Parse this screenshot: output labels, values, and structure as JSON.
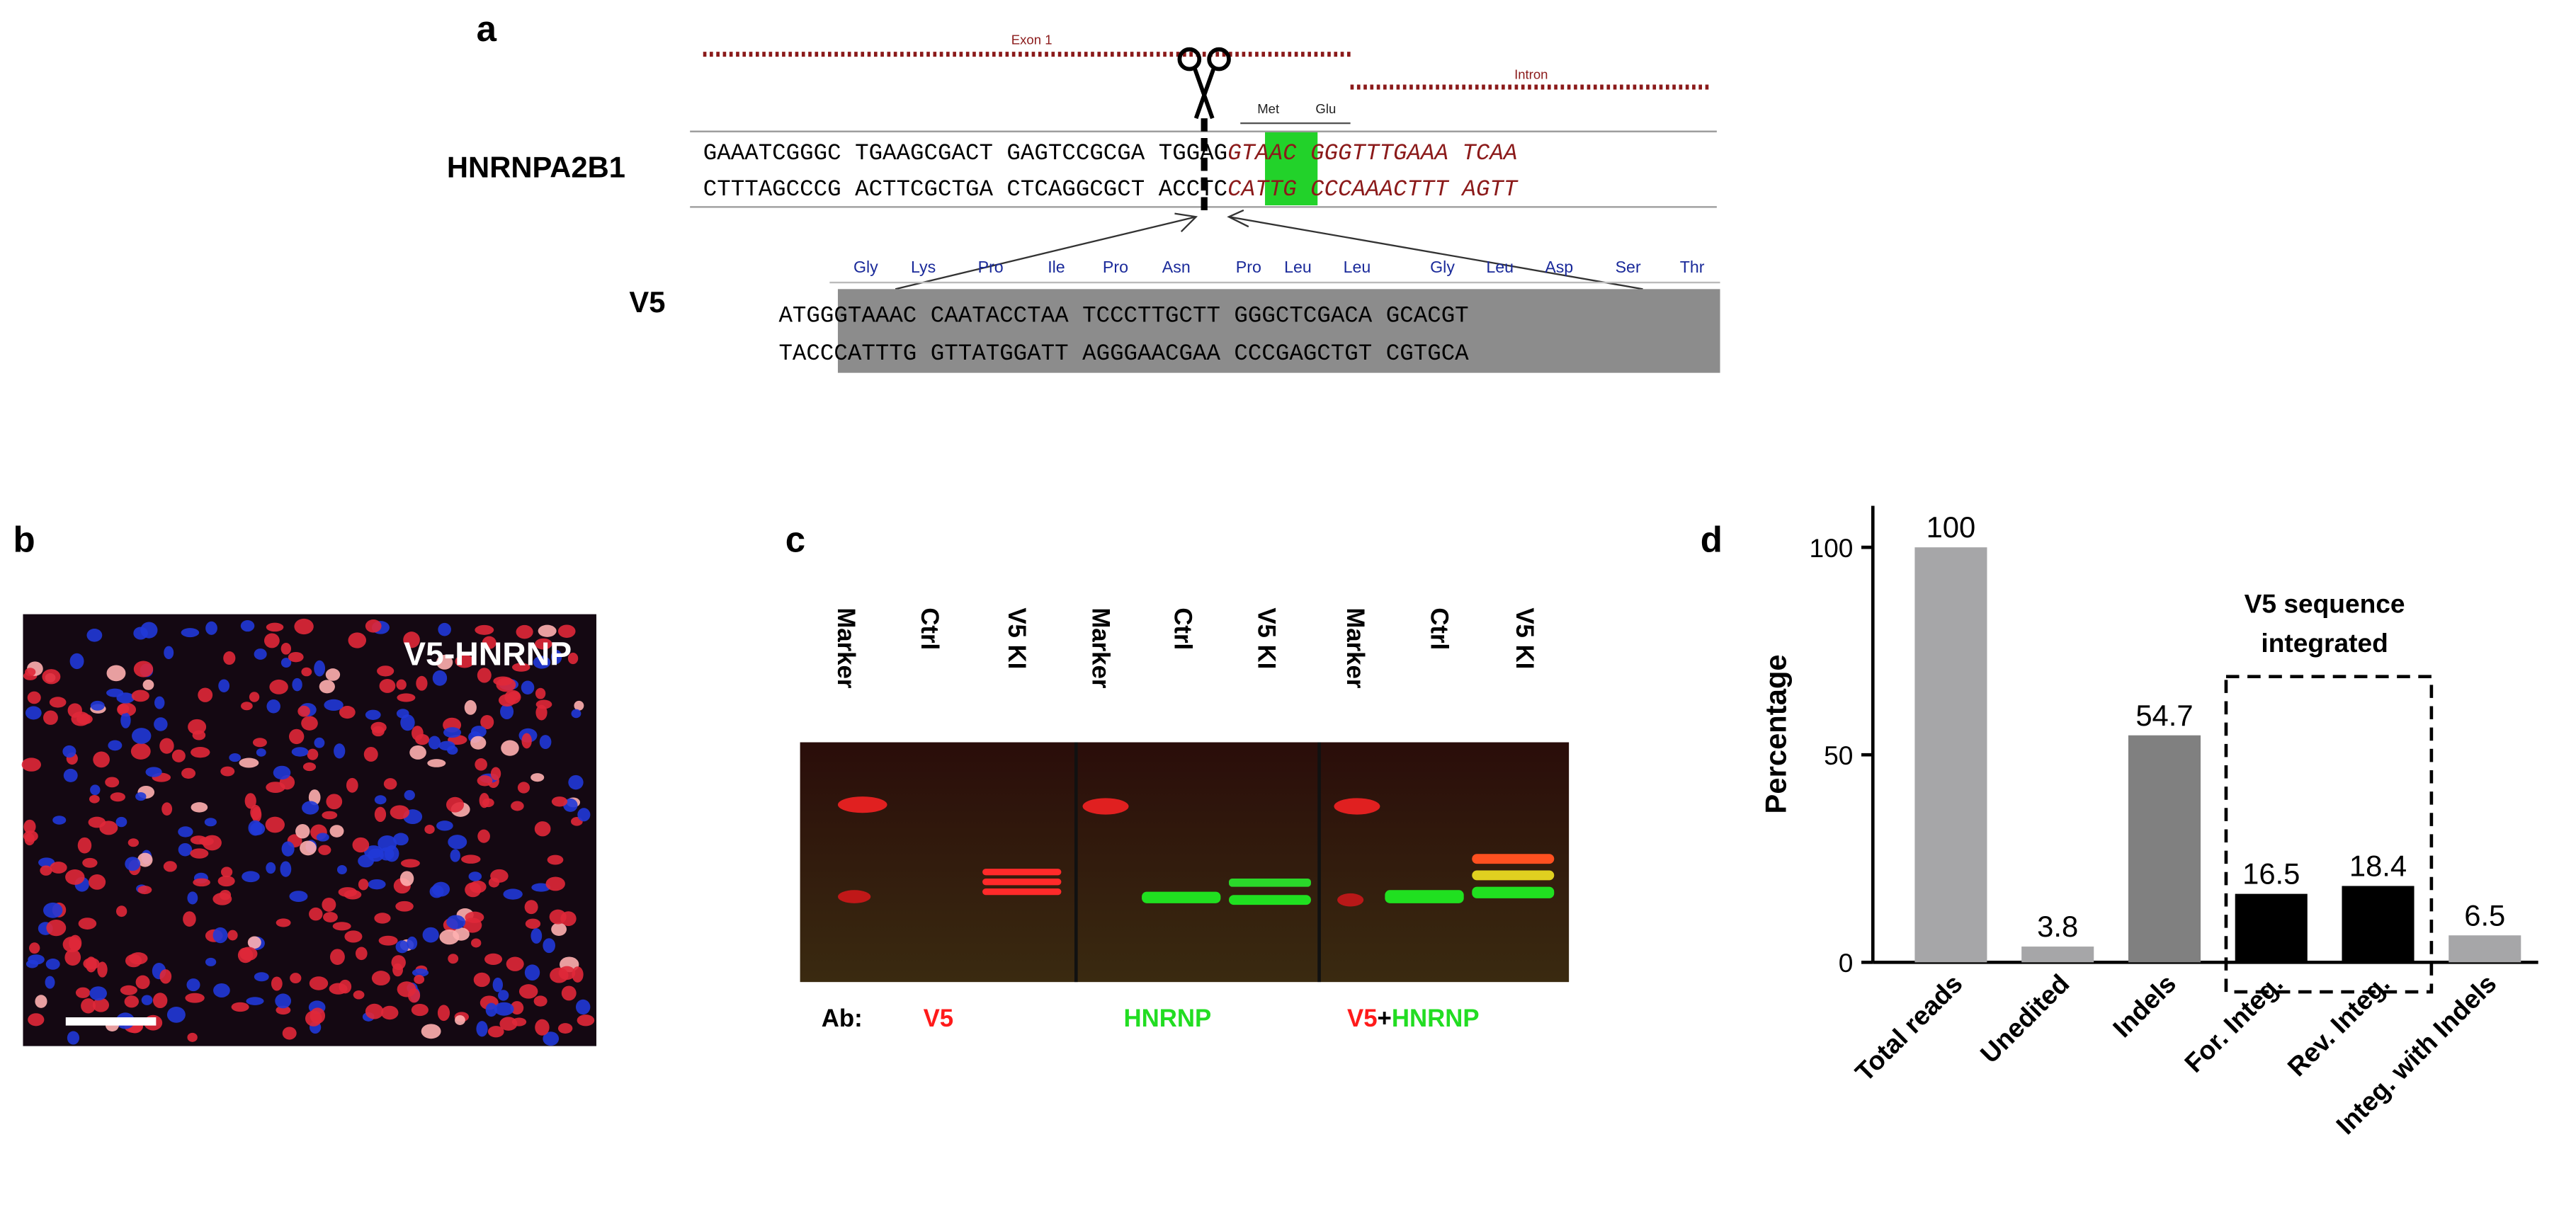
{
  "panel_a": {
    "label": "a",
    "exon_label": "Exon 1",
    "intron_label": "Intron",
    "codons": [
      "Met",
      "Glu"
    ],
    "gene": "HNRNPA2B1",
    "gene_seq_top": [
      "GAAATCGGGC TGAAGCGACT GAGTCCGCGA TGGAG",
      "GTAAC GGGTTTGAAA TCAA"
    ],
    "gene_seq_bottom": [
      "CTTTAGCCCG ACTTCGCTGA CTCAGGCGCT ACCTC",
      "CATTG CCCAAACTTT AGTT"
    ],
    "tag": "V5",
    "amino_acids": [
      "Gly",
      "Lys",
      "Pro",
      "Ile",
      "Pro",
      "Asn",
      "Pro",
      "Leu",
      "Leu",
      "Gly",
      "Leu",
      "Asp",
      "Ser",
      "Thr"
    ],
    "tag_seq_top": "ATGGGTAAAC CAATACCTAA TCCCTTGCTT GGGCTCGACA GCACGT",
    "tag_seq_bottom": "TACCCATTTG GTTATGGATT AGGGAACGAA CCCGAGCTGT CGTGCA"
  },
  "panel_b": {
    "label": "b",
    "caption": "V5-HNRNP"
  },
  "panel_c": {
    "label": "c",
    "lanes": [
      "Marker",
      "Ctrl",
      "V5 KI",
      "Marker",
      "Ctrl",
      "V5 KI",
      "Marker",
      "Ctrl",
      "V5 KI"
    ],
    "antibody_label": "Ab:",
    "antibodies": [
      "V5",
      "HNRNP",
      "V5",
      "+",
      "HNRNP"
    ]
  },
  "chart_data": {
    "type": "bar",
    "panel_label": "d",
    "y_label": "Percentage",
    "categories": [
      "Total reads",
      "Unedited",
      "Indels",
      "For. Integ.",
      "Rev. Integ.",
      "Integ. with Indels"
    ],
    "values": [
      100,
      3.8,
      54.7,
      16.5,
      18.4,
      6.5
    ],
    "colors": [
      "#a6a6a8",
      "#a6a6a8",
      "#808080",
      "#000000",
      "#000000",
      "#a6a6a8"
    ],
    "ylim": [
      0,
      110
    ],
    "yticks": [
      0,
      50,
      100
    ],
    "annotation": [
      "V5 sequence",
      "integrated"
    ]
  }
}
